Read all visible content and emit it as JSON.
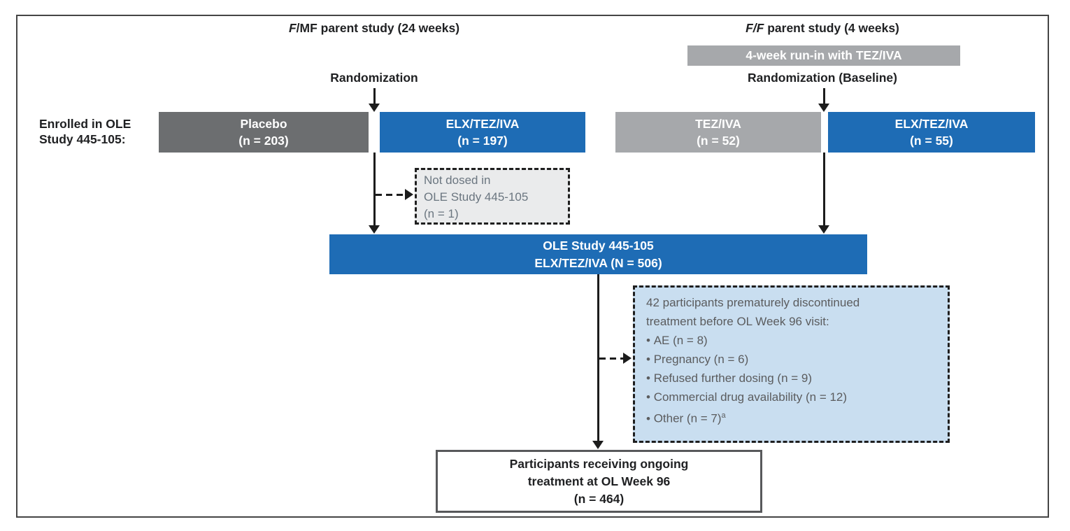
{
  "figure": {
    "left_study": {
      "title_prefix_italic": "F",
      "title_rest": "/MF parent study (24 weeks)",
      "randomization": "Randomization",
      "placebo_box": {
        "line1": "Placebo",
        "line2": "(n = 203)"
      },
      "elx_box": {
        "line1": "ELX/TEZ/IVA",
        "line2": "(n = 197)"
      }
    },
    "right_study": {
      "title_prefix_italic": "F/F",
      "title_rest": " parent study (4 weeks)",
      "runin_bar": "4-week run-in with TEZ/IVA",
      "randomization": "Randomization (Baseline)",
      "teziva_box": {
        "line1": "TEZ/IVA",
        "line2": "(n = 52)"
      },
      "elx_box": {
        "line1": "ELX/TEZ/IVA",
        "line2": "(n = 55)"
      }
    },
    "enrolled_label": "Enrolled in OLE Study 445-105:",
    "not_dosed_box": {
      "line1": "Not dosed in",
      "line2": "OLE Study 445-105",
      "line3": "(n = 1)"
    },
    "ole_box": {
      "line1": "OLE Study 445-105",
      "line2": "ELX/TEZ/IVA (N = 506)"
    },
    "discontinued_box": {
      "intro": "42 participants prematurely discontinued treatment before OL Week 96 visit:",
      "bullets": [
        {
          "text": "AE (n = 8)"
        },
        {
          "text": "Pregnancy (n = 6)"
        },
        {
          "text": "Refused further dosing (n = 9)"
        },
        {
          "text": "Commercial drug availability (n = 12)"
        },
        {
          "text": "Other (n = 7)",
          "sup": "a"
        }
      ]
    },
    "final_box": {
      "line1": "Participants receiving ongoing",
      "line2": "treatment at OL Week 96",
      "line3": "(n = 464)"
    },
    "colors": {
      "blue": "#1e6cb5",
      "dark_gray": "#6c6e70",
      "light_gray": "#a6a8ab",
      "pale_blue_fill": "#c9def0",
      "pale_gray_fill": "#eaebec",
      "note_text_gray": "#5b5c5e",
      "note_text_slate": "#6b7680",
      "arrow_black": "#1c1c1c"
    }
  }
}
